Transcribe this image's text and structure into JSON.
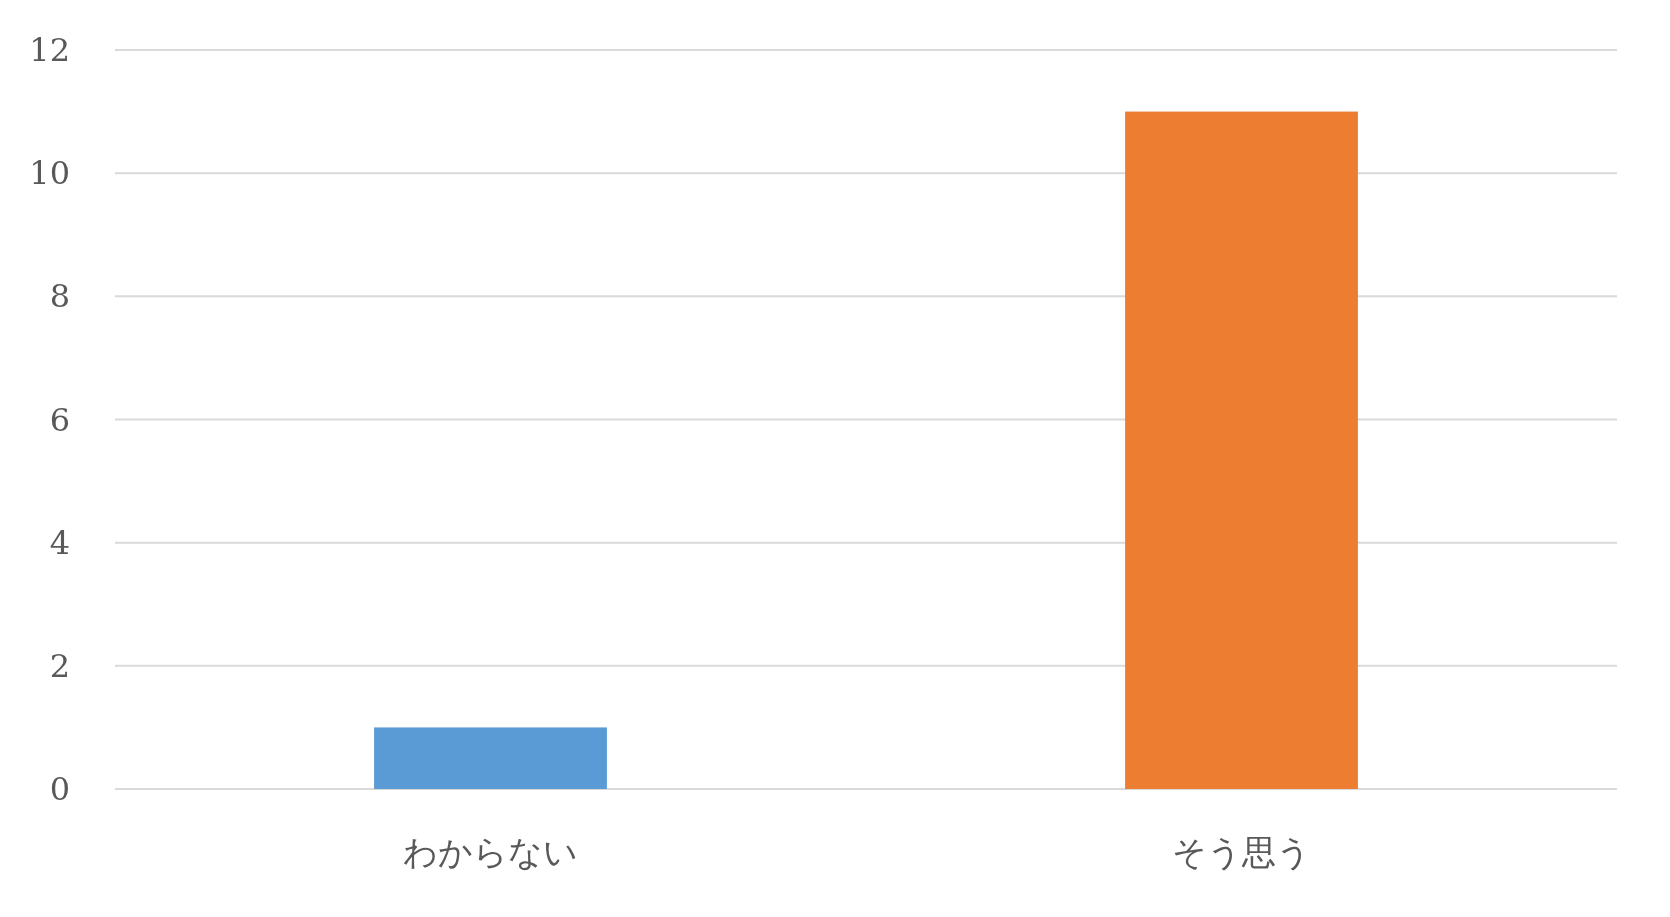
{
  "chart_data": {
    "type": "bar",
    "categories": [
      "わからない",
      "そう思う"
    ],
    "values": [
      1,
      11
    ],
    "colors": [
      "#5b9bd5",
      "#ed7d31"
    ],
    "ylim": [
      0,
      12
    ],
    "yticks": [
      0,
      2,
      4,
      6,
      8,
      10,
      12
    ],
    "grid": "y"
  }
}
